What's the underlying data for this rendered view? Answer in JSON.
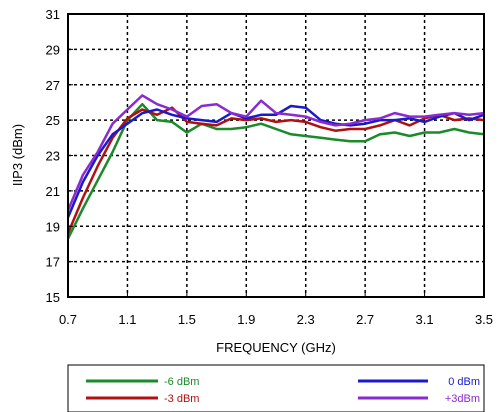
{
  "chart_data": {
    "type": "line",
    "xlabel": "FREQUENCY (GHz)",
    "ylabel": "IIP3 (dBm)",
    "xlim": [
      0.7,
      3.5
    ],
    "ylim": [
      15,
      31
    ],
    "xticks": [
      "0.7",
      "1.1",
      "1.5",
      "1.9",
      "2.3",
      "2.7",
      "3.1",
      "3.5"
    ],
    "yticks": [
      "15",
      "17",
      "19",
      "21",
      "23",
      "25",
      "27",
      "29",
      "31"
    ],
    "grid": true,
    "legend_position": "bottom",
    "series": [
      {
        "name": "-6 dBm",
        "color": "#1a8a2a",
        "x": [
          0.7,
          0.8,
          0.9,
          1.0,
          1.1,
          1.2,
          1.3,
          1.4,
          1.5,
          1.6,
          1.7,
          1.8,
          1.9,
          2.0,
          2.1,
          2.2,
          2.3,
          2.4,
          2.5,
          2.6,
          2.7,
          2.8,
          2.9,
          3.0,
          3.1,
          3.2,
          3.3,
          3.4,
          3.5
        ],
        "y": [
          18.3,
          20.0,
          21.6,
          23.2,
          25.0,
          25.9,
          25.0,
          24.9,
          24.3,
          24.8,
          24.5,
          24.5,
          24.6,
          24.8,
          24.5,
          24.2,
          24.1,
          24.0,
          23.9,
          23.8,
          23.8,
          24.2,
          24.3,
          24.1,
          24.3,
          24.3,
          24.5,
          24.3,
          24.2
        ]
      },
      {
        "name": "-3 dBm",
        "color": "#b01010",
        "x": [
          0.7,
          0.8,
          0.9,
          1.0,
          1.1,
          1.2,
          1.3,
          1.4,
          1.5,
          1.6,
          1.7,
          1.8,
          1.9,
          2.0,
          2.1,
          2.2,
          2.3,
          2.4,
          2.5,
          2.6,
          2.7,
          2.8,
          2.9,
          3.0,
          3.1,
          3.2,
          3.3,
          3.4,
          3.5
        ],
        "y": [
          18.6,
          20.6,
          22.4,
          24.0,
          25.1,
          25.6,
          25.3,
          25.7,
          24.9,
          24.8,
          24.7,
          25.1,
          25.0,
          25.1,
          24.9,
          25.0,
          24.9,
          24.6,
          24.4,
          24.5,
          24.5,
          24.7,
          25.0,
          24.7,
          25.1,
          25.3,
          25.0,
          25.1,
          25.0
        ]
      },
      {
        "name": "0 dBm",
        "color": "#1a1ac8",
        "x": [
          0.7,
          0.8,
          0.9,
          1.0,
          1.1,
          1.2,
          1.3,
          1.4,
          1.5,
          1.6,
          1.7,
          1.8,
          1.9,
          2.0,
          2.1,
          2.2,
          2.3,
          2.4,
          2.5,
          2.6,
          2.7,
          2.8,
          2.9,
          3.0,
          3.1,
          3.2,
          3.3,
          3.4,
          3.5
        ],
        "y": [
          19.5,
          21.5,
          23.0,
          24.2,
          24.8,
          25.4,
          25.6,
          25.3,
          25.1,
          25.0,
          24.9,
          25.4,
          25.1,
          25.3,
          25.3,
          25.8,
          25.7,
          25.0,
          24.8,
          24.7,
          24.8,
          25.0,
          25.0,
          25.1,
          24.9,
          25.2,
          25.4,
          25.0,
          25.3
        ]
      },
      {
        "name": "+3dBm",
        "color": "#8a2ad0",
        "x": [
          0.7,
          0.8,
          0.9,
          1.0,
          1.1,
          1.2,
          1.3,
          1.4,
          1.5,
          1.6,
          1.7,
          1.8,
          1.9,
          2.0,
          2.1,
          2.2,
          2.3,
          2.4,
          2.5,
          2.6,
          2.7,
          2.8,
          2.9,
          3.0,
          3.1,
          3.2,
          3.3,
          3.4,
          3.5
        ],
        "y": [
          19.9,
          21.9,
          23.2,
          24.8,
          25.6,
          26.4,
          25.9,
          25.6,
          25.2,
          25.8,
          25.9,
          25.4,
          25.2,
          26.1,
          25.4,
          25.3,
          25.2,
          24.9,
          24.7,
          24.8,
          25.0,
          25.1,
          25.4,
          25.2,
          25.2,
          25.3,
          25.4,
          25.3,
          25.4
        ]
      }
    ]
  }
}
